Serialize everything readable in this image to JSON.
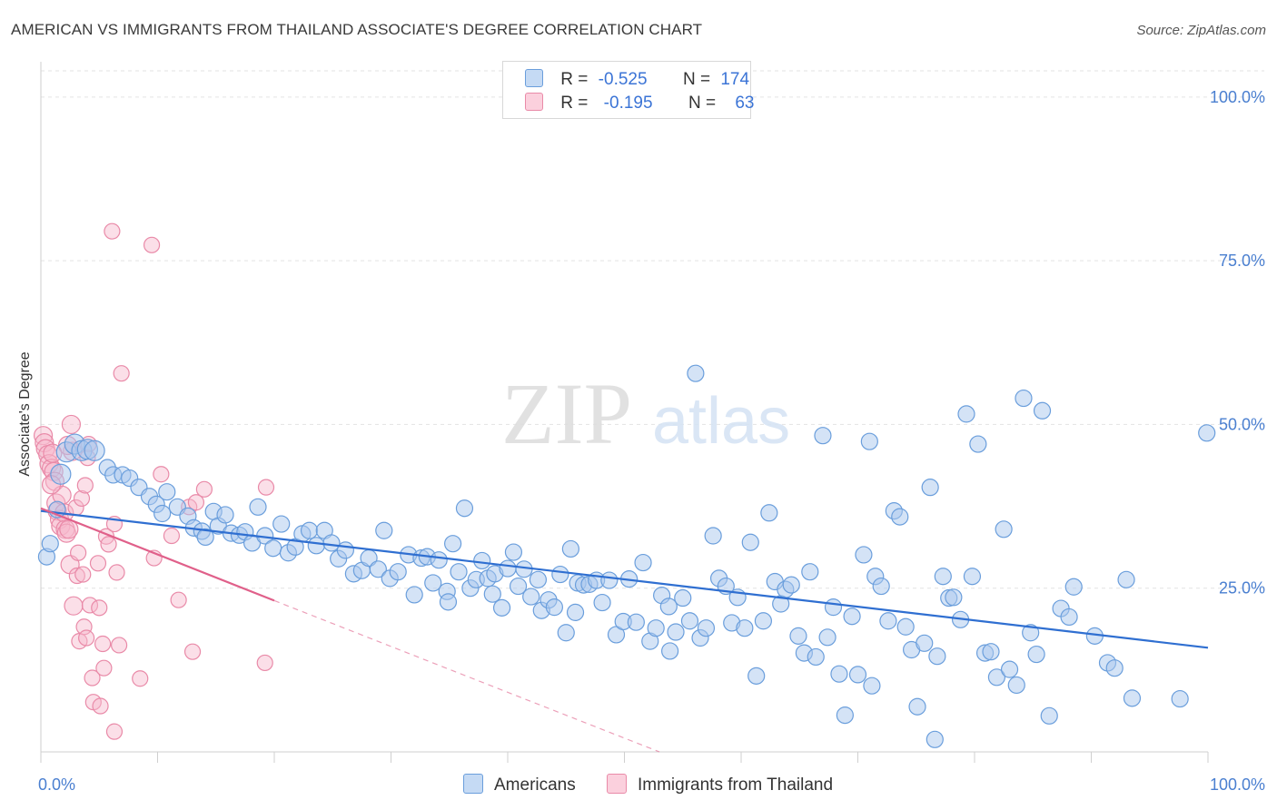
{
  "title": "AMERICAN VS IMMIGRANTS FROM THAILAND ASSOCIATE'S DEGREE CORRELATION CHART",
  "source": "Source: ZipAtlas.com",
  "watermark": {
    "zip": "ZIP",
    "atlas": "atlas"
  },
  "legend_top": {
    "rows": [
      {
        "r_label": "R =",
        "r_value": "-0.525",
        "n_label": "N =",
        "n_value": "174"
      },
      {
        "r_label": "R =",
        "r_value": "-0.195",
        "n_label": "N =",
        "n_value": "63"
      }
    ]
  },
  "legend_bottom": {
    "items": [
      "Americans",
      "Immigrants from Thailand"
    ]
  },
  "colors": {
    "americans_fill": "#a9c8ee",
    "americans_stroke": "#6a9edc",
    "americans_line": "#2f6fd1",
    "thailand_fill": "#f6b8cc",
    "thailand_stroke": "#e98aa8",
    "thailand_line": "#e0608a",
    "tick_text": "#4a7fd0",
    "grid": "#e3e3e3"
  },
  "chart_data": {
    "type": "scatter",
    "title": "AMERICAN VS IMMIGRANTS FROM THAILAND ASSOCIATE'S DEGREE CORRELATION CHART",
    "xlabel": "",
    "ylabel": "Associate's Degree",
    "xlim": [
      0,
      100
    ],
    "ylim": [
      0,
      104
    ],
    "x_tick_labels": [
      "0.0%",
      "100.0%"
    ],
    "y_ticks": [
      {
        "value": 25,
        "label": "25.0%"
      },
      {
        "value": 50,
        "label": "50.0%"
      },
      {
        "value": 75,
        "label": "75.0%"
      },
      {
        "value": 100,
        "label": "100.0%"
      }
    ],
    "grid": true,
    "legend_position": "top-center",
    "series": [
      {
        "name": "Americans",
        "R": -0.525,
        "N": 174,
        "trend": {
          "x": [
            0,
            100
          ],
          "y": [
            36.8,
            15.9
          ],
          "style": "solid"
        },
        "points": [
          [
            0.5,
            29.8
          ],
          [
            0.8,
            31.8
          ],
          [
            1.4,
            37.0
          ],
          [
            1.7,
            42.4
          ],
          [
            2.2,
            45.8
          ],
          [
            2.9,
            47.0
          ],
          [
            3.5,
            46.0
          ],
          [
            4.0,
            46.2
          ],
          [
            4.6,
            46.0
          ],
          [
            5.7,
            43.4
          ],
          [
            6.2,
            42.3
          ],
          [
            7.0,
            42.3
          ],
          [
            7.6,
            41.8
          ],
          [
            8.4,
            40.4
          ],
          [
            9.3,
            39.0
          ],
          [
            9.9,
            37.8
          ],
          [
            10.4,
            36.4
          ],
          [
            10.8,
            39.7
          ],
          [
            11.7,
            37.4
          ],
          [
            12.6,
            36.0
          ],
          [
            13.1,
            34.2
          ],
          [
            13.8,
            33.7
          ],
          [
            14.1,
            32.8
          ],
          [
            14.8,
            36.7
          ],
          [
            15.2,
            34.5
          ],
          [
            15.8,
            36.2
          ],
          [
            16.3,
            33.4
          ],
          [
            17.0,
            33.1
          ],
          [
            17.5,
            33.6
          ],
          [
            18.1,
            31.9
          ],
          [
            18.6,
            37.4
          ],
          [
            19.2,
            33.0
          ],
          [
            19.9,
            31.1
          ],
          [
            20.6,
            34.8
          ],
          [
            21.2,
            30.4
          ],
          [
            21.8,
            31.3
          ],
          [
            22.4,
            33.3
          ],
          [
            23.0,
            33.8
          ],
          [
            23.6,
            31.5
          ],
          [
            24.3,
            33.8
          ],
          [
            24.9,
            31.9
          ],
          [
            25.5,
            29.5
          ],
          [
            26.1,
            30.8
          ],
          [
            26.8,
            27.2
          ],
          [
            27.5,
            27.7
          ],
          [
            28.1,
            29.6
          ],
          [
            28.9,
            27.9
          ],
          [
            29.4,
            33.8
          ],
          [
            29.9,
            26.5
          ],
          [
            30.6,
            27.5
          ],
          [
            31.5,
            30.1
          ],
          [
            32.0,
            24.0
          ],
          [
            32.6,
            29.6
          ],
          [
            33.1,
            29.8
          ],
          [
            33.6,
            25.8
          ],
          [
            34.1,
            29.3
          ],
          [
            34.8,
            24.5
          ],
          [
            35.3,
            31.8
          ],
          [
            35.8,
            27.5
          ],
          [
            36.3,
            37.2
          ],
          [
            36.8,
            25.0
          ],
          [
            37.3,
            26.3
          ],
          [
            37.8,
            29.2
          ],
          [
            38.3,
            26.5
          ],
          [
            38.9,
            27.2
          ],
          [
            39.5,
            22.0
          ],
          [
            40.0,
            28.0
          ],
          [
            40.5,
            30.5
          ],
          [
            40.9,
            25.3
          ],
          [
            41.4,
            27.9
          ],
          [
            42.0,
            23.7
          ],
          [
            42.6,
            26.3
          ],
          [
            42.9,
            21.6
          ],
          [
            43.5,
            23.2
          ],
          [
            44.0,
            22.1
          ],
          [
            44.5,
            27.1
          ],
          [
            45.0,
            18.2
          ],
          [
            45.4,
            31.0
          ],
          [
            46.0,
            25.8
          ],
          [
            46.5,
            25.5
          ],
          [
            47.0,
            25.6
          ],
          [
            47.6,
            26.2
          ],
          [
            48.1,
            22.8
          ],
          [
            48.7,
            26.2
          ],
          [
            49.3,
            17.9
          ],
          [
            49.9,
            19.9
          ],
          [
            50.4,
            26.4
          ],
          [
            51.0,
            19.8
          ],
          [
            51.6,
            28.9
          ],
          [
            52.2,
            16.9
          ],
          [
            52.7,
            18.9
          ],
          [
            53.2,
            23.9
          ],
          [
            53.8,
            22.2
          ],
          [
            54.4,
            18.3
          ],
          [
            55.0,
            23.5
          ],
          [
            55.6,
            20.0
          ],
          [
            56.1,
            57.8
          ],
          [
            56.5,
            17.4
          ],
          [
            57.0,
            18.9
          ],
          [
            57.6,
            33.0
          ],
          [
            58.1,
            26.5
          ],
          [
            58.7,
            25.3
          ],
          [
            59.2,
            19.7
          ],
          [
            59.7,
            23.6
          ],
          [
            60.3,
            18.9
          ],
          [
            60.8,
            32.0
          ],
          [
            61.3,
            11.6
          ],
          [
            61.9,
            20.0
          ],
          [
            62.4,
            36.5
          ],
          [
            62.9,
            26.0
          ],
          [
            63.4,
            22.6
          ],
          [
            63.8,
            24.8
          ],
          [
            64.3,
            25.5
          ],
          [
            64.9,
            17.7
          ],
          [
            65.4,
            15.1
          ],
          [
            65.9,
            27.5
          ],
          [
            66.4,
            14.5
          ],
          [
            67.0,
            48.3
          ],
          [
            67.4,
            17.5
          ],
          [
            67.9,
            22.1
          ],
          [
            68.4,
            11.9
          ],
          [
            68.9,
            5.6
          ],
          [
            69.5,
            20.7
          ],
          [
            70.0,
            11.8
          ],
          [
            70.5,
            30.1
          ],
          [
            71.0,
            47.4
          ],
          [
            71.5,
            26.8
          ],
          [
            72.0,
            25.3
          ],
          [
            72.6,
            20.0
          ],
          [
            73.1,
            36.8
          ],
          [
            73.6,
            35.9
          ],
          [
            74.1,
            19.1
          ],
          [
            74.6,
            15.6
          ],
          [
            75.1,
            6.9
          ],
          [
            75.7,
            16.6
          ],
          [
            76.2,
            40.4
          ],
          [
            76.8,
            14.6
          ],
          [
            77.3,
            26.8
          ],
          [
            77.8,
            23.5
          ],
          [
            78.2,
            23.6
          ],
          [
            78.8,
            20.2
          ],
          [
            79.3,
            51.6
          ],
          [
            79.8,
            26.8
          ],
          [
            80.3,
            47.0
          ],
          [
            80.9,
            15.1
          ],
          [
            81.4,
            15.3
          ],
          [
            81.9,
            11.4
          ],
          [
            82.5,
            34.0
          ],
          [
            83.0,
            12.6
          ],
          [
            83.6,
            10.2
          ],
          [
            84.2,
            54.0
          ],
          [
            84.8,
            18.2
          ],
          [
            85.3,
            14.9
          ],
          [
            85.8,
            52.1
          ],
          [
            86.4,
            5.5
          ],
          [
            87.4,
            21.9
          ],
          [
            88.5,
            25.2
          ],
          [
            90.3,
            17.7
          ],
          [
            91.4,
            13.6
          ],
          [
            92.0,
            12.8
          ],
          [
            93.0,
            26.3
          ],
          [
            93.5,
            8.2
          ],
          [
            97.6,
            8.1
          ],
          [
            99.9,
            48.7
          ],
          [
            76.6,
            1.9
          ],
          [
            34.9,
            22.9
          ],
          [
            38.7,
            24.1
          ],
          [
            45.8,
            21.3
          ],
          [
            53.9,
            15.4
          ],
          [
            71.2,
            10.1
          ],
          [
            88.1,
            20.6
          ]
        ],
        "sizes_note": "most points small; a few near x≈2–5 are larger"
      },
      {
        "name": "Immigrants from Thailand",
        "R": -0.195,
        "N": 63,
        "trend": {
          "x": [
            0,
            20
          ],
          "y": [
            37.2,
            23.1
          ],
          "style": "solid",
          "extension": {
            "x": [
              20,
              53
            ],
            "y": [
              23.1,
              0
            ],
            "style": "dashed"
          }
        },
        "points": [
          [
            0.2,
            48.3
          ],
          [
            0.3,
            47.2
          ],
          [
            0.4,
            46.3
          ],
          [
            0.6,
            45.4
          ],
          [
            0.7,
            44.0
          ],
          [
            0.9,
            43.3
          ],
          [
            1.1,
            42.8
          ],
          [
            1.2,
            41.3
          ],
          [
            1.3,
            38.0
          ],
          [
            1.4,
            36.8
          ],
          [
            1.6,
            35.5
          ],
          [
            1.7,
            34.5
          ],
          [
            1.8,
            39.2
          ],
          [
            2.0,
            36.5
          ],
          [
            2.1,
            34.0
          ],
          [
            2.2,
            33.4
          ],
          [
            2.4,
            34.0
          ],
          [
            2.5,
            28.6
          ],
          [
            2.6,
            50.0
          ],
          [
            2.7,
            45.9
          ],
          [
            2.8,
            22.3
          ],
          [
            3.0,
            37.3
          ],
          [
            3.1,
            26.9
          ],
          [
            3.2,
            30.4
          ],
          [
            3.3,
            16.9
          ],
          [
            3.5,
            38.7
          ],
          [
            3.6,
            27.1
          ],
          [
            3.7,
            19.1
          ],
          [
            3.8,
            40.7
          ],
          [
            3.9,
            17.4
          ],
          [
            4.1,
            47.0
          ],
          [
            4.2,
            22.4
          ],
          [
            4.4,
            11.3
          ],
          [
            4.5,
            7.6
          ],
          [
            4.9,
            28.8
          ],
          [
            5.1,
            7.0
          ],
          [
            5.3,
            16.5
          ],
          [
            5.4,
            12.8
          ],
          [
            5.6,
            32.9
          ],
          [
            5.8,
            31.7
          ],
          [
            6.1,
            79.5
          ],
          [
            6.3,
            34.8
          ],
          [
            6.5,
            27.4
          ],
          [
            6.7,
            16.3
          ],
          [
            6.9,
            57.8
          ],
          [
            8.5,
            11.2
          ],
          [
            9.5,
            77.4
          ],
          [
            9.7,
            29.6
          ],
          [
            10.3,
            42.4
          ],
          [
            11.2,
            33.0
          ],
          [
            11.8,
            23.2
          ],
          [
            12.7,
            37.4
          ],
          [
            13.0,
            15.3
          ],
          [
            13.3,
            38.1
          ],
          [
            14.0,
            40.1
          ],
          [
            19.2,
            13.6
          ],
          [
            19.3,
            40.4
          ],
          [
            6.3,
            3.1
          ],
          [
            2.3,
            46.8
          ],
          [
            1.0,
            45.6
          ],
          [
            0.9,
            40.8
          ],
          [
            4.0,
            44.9
          ],
          [
            5.0,
            22.0
          ]
        ]
      }
    ]
  }
}
